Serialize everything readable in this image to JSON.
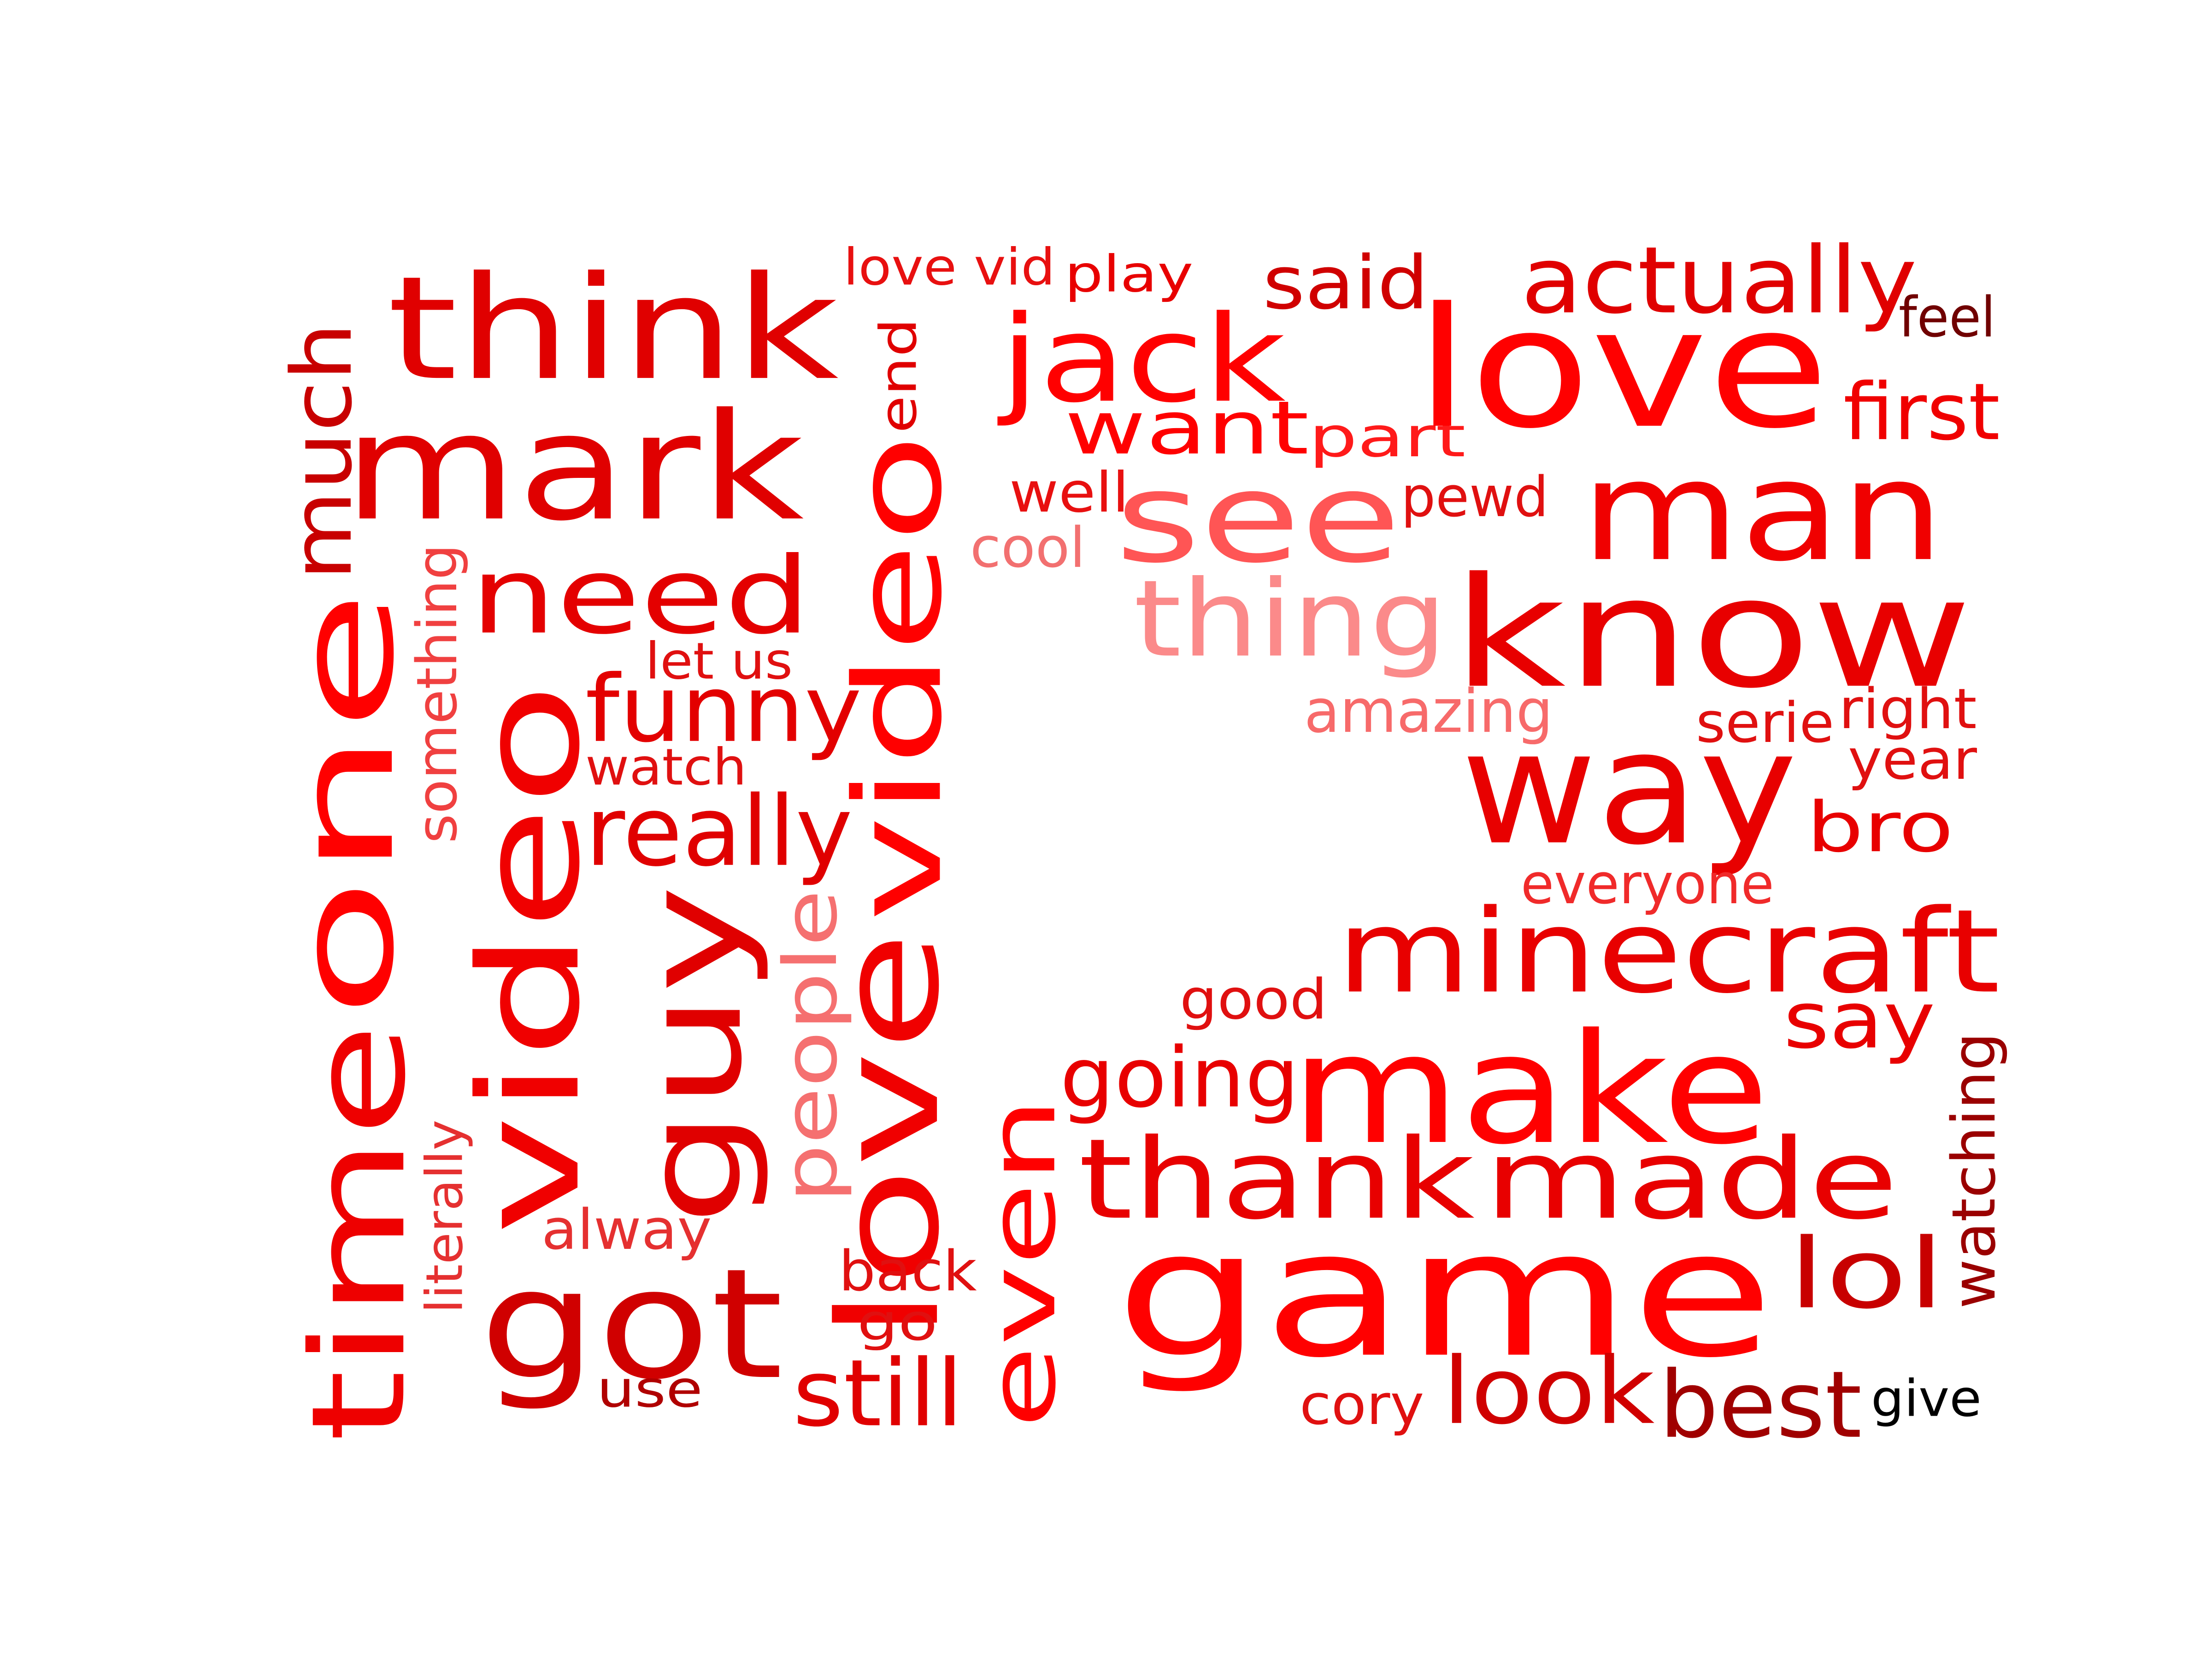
{
  "words": [
    {
      "text": "think",
      "color": "#e00000"
    },
    {
      "text": "mark",
      "color": "#e00000"
    },
    {
      "text": "need",
      "color": "#e40000"
    },
    {
      "text": "funny",
      "color": "#e30000"
    },
    {
      "text": "watch",
      "color": "#e01010"
    },
    {
      "text": "let us",
      "color": "#e01010"
    },
    {
      "text": "really",
      "color": "#e00000"
    },
    {
      "text": "much",
      "color": "#c80000"
    },
    {
      "text": "one",
      "color": "#ff0000"
    },
    {
      "text": "time",
      "color": "#ee0000"
    },
    {
      "text": "something",
      "color": "#f04040"
    },
    {
      "text": "video",
      "color": "#f00000"
    },
    {
      "text": "video",
      "color": "#ff0000"
    },
    {
      "text": "love vid",
      "color": "#e81010"
    },
    {
      "text": "end",
      "color": "#e00000"
    },
    {
      "text": "guy",
      "color": "#e00000"
    },
    {
      "text": "people",
      "color": "#f57070"
    },
    {
      "text": "love",
      "color": "#f00000"
    },
    {
      "text": "literally",
      "color": "#e53030"
    },
    {
      "text": "alway",
      "color": "#e53030"
    },
    {
      "text": "got",
      "color": "#d00000"
    },
    {
      "text": "use",
      "color": "#b00000"
    },
    {
      "text": "back",
      "color": "#e01010"
    },
    {
      "text": "go",
      "color": "#e01010"
    },
    {
      "text": "still",
      "color": "#e00000"
    },
    {
      "text": "even",
      "color": "#ff0000"
    },
    {
      "text": "play",
      "color": "#e80000"
    },
    {
      "text": "jack",
      "color": "#ff0000"
    },
    {
      "text": "want",
      "color": "#ff0000"
    },
    {
      "text": "part",
      "color": "#ff1a1a"
    },
    {
      "text": "well",
      "color": "#e81010"
    },
    {
      "text": "cool",
      "color": "#f27070"
    },
    {
      "text": "see",
      "color": "#ff5555"
    },
    {
      "text": "thing",
      "color": "#fb8a8a"
    },
    {
      "text": "said",
      "color": "#d00000"
    },
    {
      "text": "pewd",
      "color": "#e01010"
    },
    {
      "text": "actually",
      "color": "#e00000"
    },
    {
      "text": "feel",
      "color": "#700000"
    },
    {
      "text": "love",
      "color": "#ff0000"
    },
    {
      "text": "first",
      "color": "#f00000"
    },
    {
      "text": "man",
      "color": "#f00000"
    },
    {
      "text": "know",
      "color": "#e80000"
    },
    {
      "text": "amazing",
      "color": "#f76a6a"
    },
    {
      "text": "serie",
      "color": "#e01010"
    },
    {
      "text": "right",
      "color": "#e01010"
    },
    {
      "text": "year",
      "color": "#e01010"
    },
    {
      "text": "way",
      "color": "#e80000"
    },
    {
      "text": "bro",
      "color": "#e80000"
    },
    {
      "text": "everyone",
      "color": "#f02a2a"
    },
    {
      "text": "minecraft",
      "color": "#e80000"
    },
    {
      "text": "good",
      "color": "#e01010"
    },
    {
      "text": "say",
      "color": "#e80000"
    },
    {
      "text": "going",
      "color": "#e80000"
    },
    {
      "text": "make",
      "color": "#ff0000"
    },
    {
      "text": "watching",
      "color": "#9a0000"
    },
    {
      "text": "thank",
      "color": "#e80000"
    },
    {
      "text": "made",
      "color": "#e80000"
    },
    {
      "text": "game",
      "color": "#ff0000"
    },
    {
      "text": "lol",
      "color": "#c80000"
    },
    {
      "text": "cory",
      "color": "#e01010"
    },
    {
      "text": "look",
      "color": "#d00000"
    },
    {
      "text": "best",
      "color": "#a00000"
    },
    {
      "text": "give",
      "color": "#000000"
    }
  ]
}
